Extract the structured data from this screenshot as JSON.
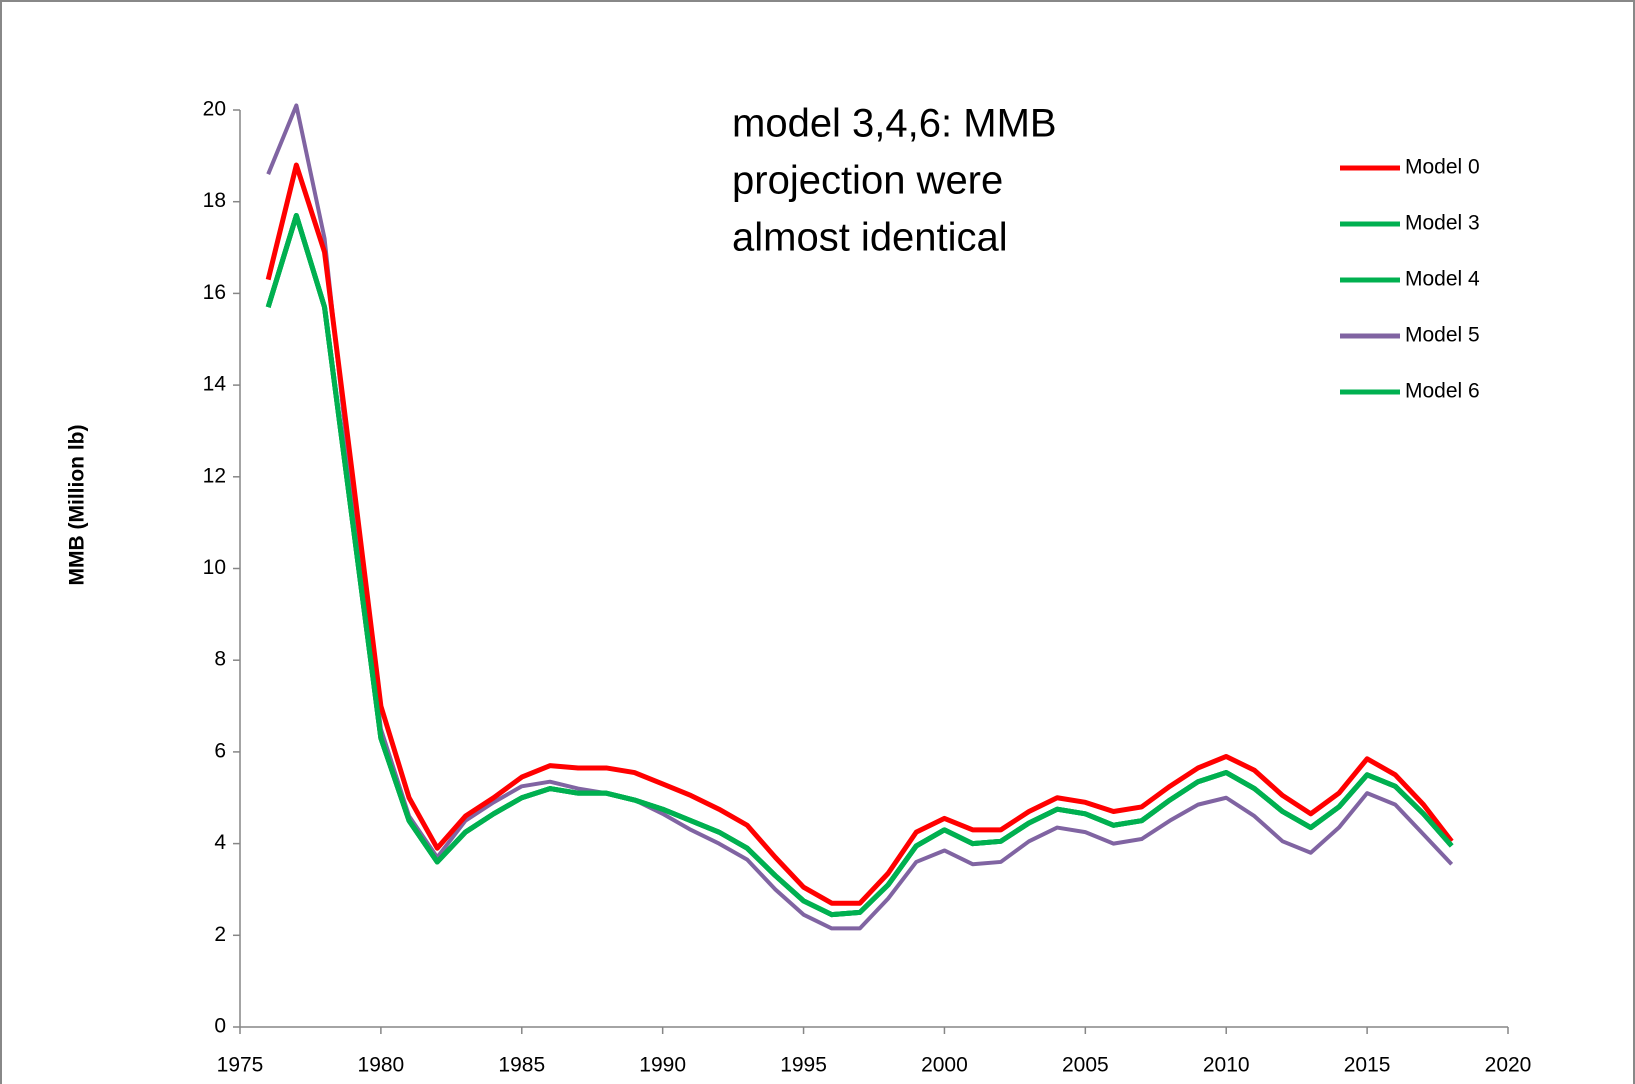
{
  "chart_data": {
    "type": "line",
    "ylabel": "MMB (Million lb)",
    "annotation": [
      "model 3,4,6: MMB",
      "projection were",
      "almost identical"
    ],
    "x": [
      1976,
      1977,
      1978,
      1979,
      1980,
      1981,
      1982,
      1983,
      1984,
      1985,
      1986,
      1987,
      1988,
      1989,
      1990,
      1991,
      1992,
      1993,
      1994,
      1995,
      1996,
      1997,
      1998,
      1999,
      2000,
      2001,
      2002,
      2003,
      2004,
      2005,
      2006,
      2007,
      2008,
      2009,
      2010,
      2011,
      2012,
      2013,
      2014,
      2015,
      2016,
      2017,
      2018
    ],
    "series": [
      {
        "name": "Model 0",
        "color": "#ff0000",
        "values": [
          16.3,
          18.8,
          16.9,
          12.0,
          7.0,
          5.0,
          3.9,
          4.6,
          5.0,
          5.45,
          5.7,
          5.65,
          5.65,
          5.55,
          5.3,
          5.05,
          4.75,
          4.4,
          3.7,
          3.05,
          2.7,
          2.7,
          3.35,
          4.25,
          4.55,
          4.3,
          4.3,
          4.7,
          5.0,
          4.9,
          4.7,
          4.8,
          5.25,
          5.65,
          5.9,
          5.6,
          5.05,
          4.65,
          5.1,
          5.85,
          5.5,
          4.85,
          4.05
        ]
      },
      {
        "name": "Model 3",
        "color": "#00b050",
        "values": [
          15.7,
          17.7,
          15.7,
          11.0,
          6.3,
          4.5,
          3.6,
          4.25,
          4.65,
          5.0,
          5.2,
          5.1,
          5.1,
          4.95,
          4.75,
          4.5,
          4.25,
          3.9,
          3.3,
          2.75,
          2.45,
          2.5,
          3.1,
          3.95,
          4.3,
          4.0,
          4.05,
          4.45,
          4.75,
          4.65,
          4.4,
          4.5,
          4.95,
          5.35,
          5.55,
          5.2,
          4.7,
          4.35,
          4.8,
          5.5,
          5.25,
          4.65,
          3.95
        ]
      },
      {
        "name": "Model 4",
        "color": "#00b050",
        "values": [
          15.7,
          17.7,
          15.7,
          11.0,
          6.3,
          4.5,
          3.6,
          4.25,
          4.65,
          5.0,
          5.2,
          5.1,
          5.1,
          4.95,
          4.75,
          4.5,
          4.25,
          3.9,
          3.3,
          2.75,
          2.45,
          2.5,
          3.1,
          3.95,
          4.3,
          4.0,
          4.05,
          4.45,
          4.75,
          4.65,
          4.4,
          4.5,
          4.95,
          5.35,
          5.55,
          5.2,
          4.7,
          4.35,
          4.8,
          5.5,
          5.25,
          4.65,
          3.95
        ]
      },
      {
        "name": "Model 5",
        "color": "#8064a2",
        "values": [
          18.6,
          20.1,
          17.2,
          11.5,
          6.5,
          4.6,
          3.7,
          4.5,
          4.9,
          5.25,
          5.35,
          5.2,
          5.1,
          4.95,
          4.65,
          4.3,
          4.0,
          3.65,
          3.0,
          2.45,
          2.15,
          2.15,
          2.8,
          3.6,
          3.85,
          3.55,
          3.6,
          4.05,
          4.35,
          4.25,
          4.0,
          4.1,
          4.5,
          4.85,
          5.0,
          4.6,
          4.05,
          3.8,
          4.35,
          5.1,
          4.85,
          4.2,
          3.55
        ]
      },
      {
        "name": "Model 6",
        "color": "#00b050",
        "values": [
          15.7,
          17.7,
          15.7,
          11.0,
          6.3,
          4.5,
          3.6,
          4.25,
          4.65,
          5.0,
          5.2,
          5.1,
          5.1,
          4.95,
          4.75,
          4.5,
          4.25,
          3.9,
          3.3,
          2.75,
          2.45,
          2.5,
          3.1,
          3.95,
          4.3,
          4.0,
          4.05,
          4.45,
          4.75,
          4.65,
          4.4,
          4.5,
          4.95,
          5.35,
          5.55,
          5.2,
          4.7,
          4.35,
          4.8,
          5.5,
          5.25,
          4.65,
          3.95
        ]
      }
    ],
    "xlim": [
      1975,
      2020
    ],
    "xticks": [
      1975,
      1980,
      1985,
      1990,
      1995,
      2000,
      2005,
      2010,
      2015,
      2020
    ],
    "ylim": [
      0,
      20
    ],
    "yticks": [
      0,
      2,
      4,
      6,
      8,
      10,
      12,
      14,
      16,
      18,
      20
    ],
    "legend": "right"
  }
}
